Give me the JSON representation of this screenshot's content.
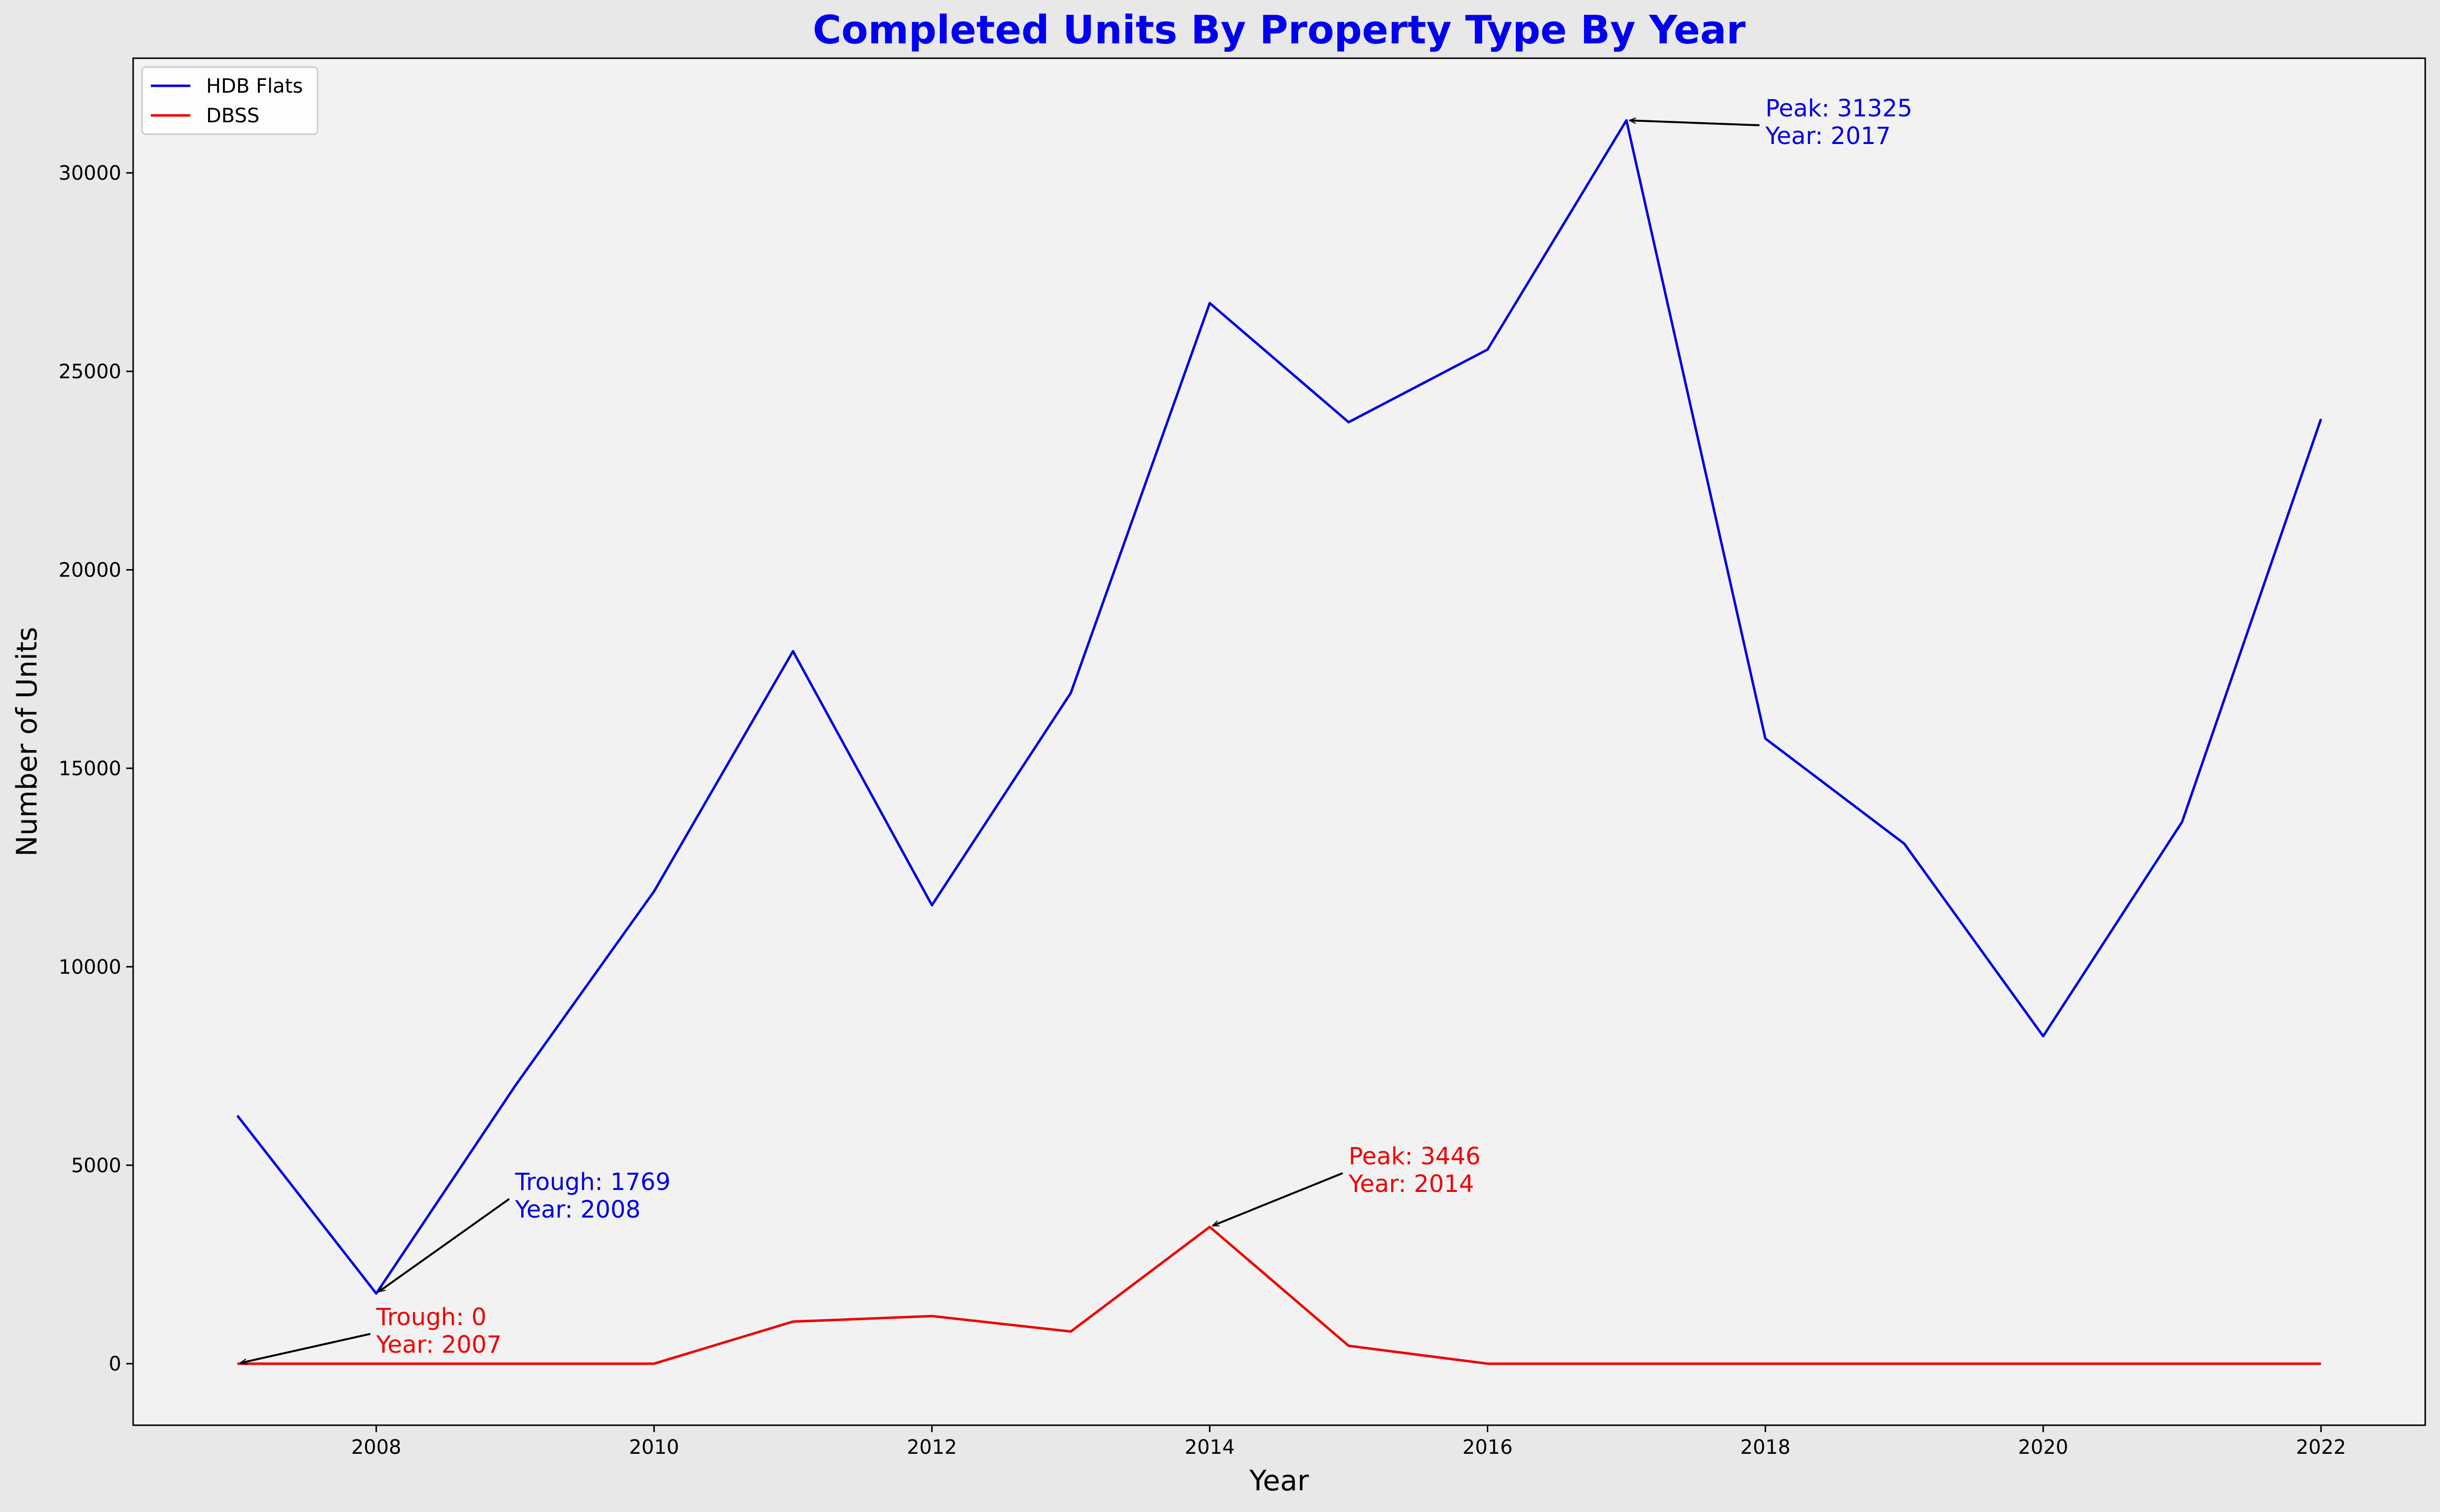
{
  "chart_data": {
    "type": "line",
    "title": "Completed Units By Property Type By Year",
    "xlabel": "Year",
    "ylabel": "Number of Units",
    "x": [
      2007,
      2008,
      2009,
      2010,
      2011,
      2012,
      2013,
      2014,
      2015,
      2016,
      2017,
      2018,
      2019,
      2020,
      2021,
      2022
    ],
    "xlim": [
      2006.25,
      2022.75
    ],
    "ylim": [
      -1550,
      32890
    ],
    "xticks": [
      2008,
      2010,
      2012,
      2014,
      2016,
      2018,
      2020,
      2022
    ],
    "yticks": [
      0,
      5000,
      10000,
      15000,
      20000,
      25000,
      30000
    ],
    "grid": false,
    "legend_position": "top-left",
    "series": [
      {
        "name": "HDB Flats",
        "color": "#0000dd",
        "values": [
          6250,
          1769,
          7000,
          11900,
          17950,
          11550,
          16900,
          26720,
          23720,
          25550,
          31325,
          15750,
          13100,
          8250,
          13650,
          23800
        ]
      },
      {
        "name": "DBSS",
        "color": "#ee0000",
        "values": [
          0,
          0,
          0,
          0,
          1060,
          1200,
          810,
          3446,
          450,
          0,
          0,
          0,
          0,
          0,
          0,
          0
        ]
      }
    ],
    "annotations": [
      {
        "lines": [
          "Peak: 31325",
          "Year: 2017"
        ],
        "x": 2017,
        "y": 31325,
        "text_x": 2018,
        "text_y": 31300,
        "color": "#0000dd"
      },
      {
        "lines": [
          "Trough: 1769",
          "Year: 2008"
        ],
        "x": 2008,
        "y": 1769,
        "text_x": 2009,
        "text_y": 4250,
        "color": "#0000dd"
      },
      {
        "lines": [
          "Peak: 3446",
          "Year: 2014"
        ],
        "x": 2014,
        "y": 3446,
        "text_x": 2015,
        "text_y": 4900,
        "color": "#ee0000"
      },
      {
        "lines": [
          "Trough: 0",
          "Year: 2007"
        ],
        "x": 2007,
        "y": 0,
        "text_x": 2008,
        "text_y": 850,
        "color": "#ee0000"
      }
    ],
    "colors": {
      "title": "#0000ee",
      "plot_background": "#f2f2f2",
      "figure_background": "#e8e8e8"
    }
  }
}
